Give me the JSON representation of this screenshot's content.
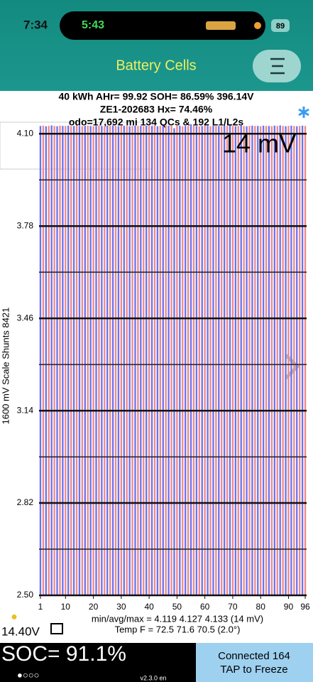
{
  "status_bar": {
    "time": "7:34",
    "call_time": "5:43",
    "battery": "89"
  },
  "header": {
    "title": "Battery Cells"
  },
  "chart_data": {
    "type": "bar",
    "info_lines": [
      "40 kWh  AHr= 99.92  SOH= 86.59%   396.14V",
      "ZE1-202683   Hx= 74.46%",
      "odo=17,692 mi 134 QCs & 192 L1/L2s"
    ],
    "annotation": "14 mV",
    "ylabel": "1600 mV Scale   Shunts 8421",
    "categories": [
      1,
      2,
      3,
      4,
      5,
      6,
      7,
      8,
      9,
      10,
      11,
      12,
      13,
      14,
      15,
      16,
      17,
      18,
      19,
      20,
      21,
      22,
      23,
      24,
      25,
      26,
      27,
      28,
      29,
      30,
      31,
      32,
      33,
      34,
      35,
      36,
      37,
      38,
      39,
      40,
      41,
      42,
      43,
      44,
      45,
      46,
      47,
      48,
      49,
      50,
      51,
      52,
      53,
      54,
      55,
      56,
      57,
      58,
      59,
      60,
      61,
      62,
      63,
      64,
      65,
      66,
      67,
      68,
      69,
      70,
      71,
      72,
      73,
      74,
      75,
      76,
      77,
      78,
      79,
      80,
      81,
      82,
      83,
      84,
      85,
      86,
      87,
      88,
      89,
      90,
      91,
      92,
      93,
      94,
      95,
      96
    ],
    "values": [
      4.127,
      4.128,
      4.126,
      4.127,
      4.129,
      4.127,
      4.126,
      4.128,
      4.127,
      4.127,
      4.128,
      4.126,
      4.127,
      4.129,
      4.127,
      4.126,
      4.127,
      4.128,
      4.127,
      4.126,
      4.127,
      4.128,
      4.127,
      4.126,
      4.128,
      4.127,
      4.129,
      4.127,
      4.126,
      4.127,
      4.128,
      4.127,
      4.126,
      4.127,
      4.128,
      4.127,
      4.127,
      4.126,
      4.128,
      4.127,
      4.127,
      4.128,
      4.126,
      4.127,
      4.127,
      4.129,
      4.128,
      4.127,
      4.119,
      4.127,
      4.128,
      4.126,
      4.127,
      4.127,
      4.133,
      4.128,
      4.127,
      4.126,
      4.127,
      4.128,
      4.127,
      4.126,
      4.128,
      4.127,
      4.127,
      4.126,
      4.128,
      4.127,
      4.129,
      4.127,
      4.126,
      4.127,
      4.128,
      4.127,
      4.126,
      4.127,
      4.128,
      4.127,
      4.127,
      4.126,
      4.128,
      4.127,
      4.127,
      4.126,
      4.128,
      4.127,
      4.129,
      4.127,
      4.126,
      4.127,
      4.128,
      4.127,
      4.126,
      4.127,
      4.128,
      4.127
    ],
    "bar_colors": [
      "#6b74ee",
      "#ee8a8a"
    ],
    "ylim": [
      2.5,
      4.14
    ],
    "yticks": [
      {
        "value": 2.5,
        "label": "2.50"
      },
      2.82,
      3.14,
      3.46,
      3.78,
      {
        "value": 4.1,
        "label": "4.10"
      }
    ],
    "minor_yticks": [
      2.66,
      2.98,
      3.3,
      3.62,
      3.94
    ],
    "xticks": [
      1,
      10,
      20,
      30,
      40,
      50,
      60,
      70,
      80,
      90,
      96
    ],
    "footer_lines": [
      "min/avg/max = 4.119 4.127 4.133  (14 mV)",
      "Temp F = 72.5  71.6  70.5  (2.0°)"
    ]
  },
  "pack_voltage": "14.40V",
  "soc": "SOC= 91.1%",
  "page_dots": "●○○○",
  "version": "v2.3.0 en",
  "connection": "Connected 164",
  "action": "TAP to Freeze"
}
